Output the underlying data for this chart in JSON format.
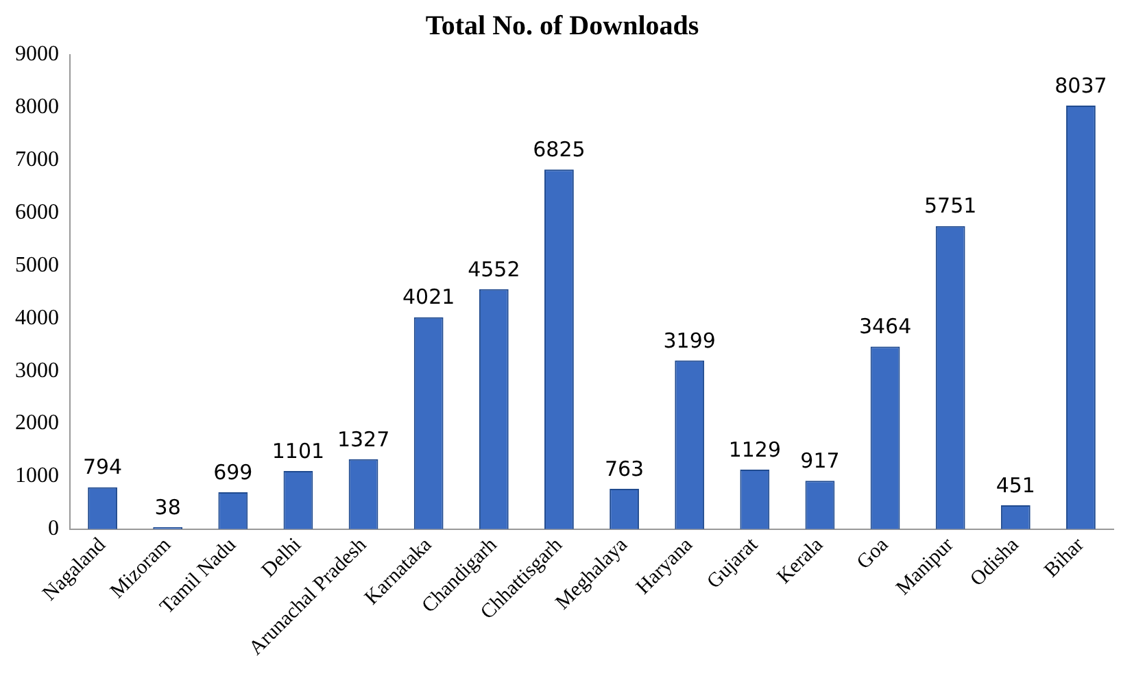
{
  "chart_data": {
    "type": "bar",
    "title": "Total No. of Downloads",
    "categories": [
      "Nagaland",
      "Mizoram",
      "Tamil Nadu",
      "Delhi",
      "Arunachal Pradesh",
      "Karnataka",
      "Chandigarh",
      "Chhattisgarh",
      "Meghalaya",
      "Haryana",
      "Gujarat",
      "Kerala",
      "Goa",
      "Manipur",
      "Odisha",
      "Bihar"
    ],
    "values": [
      794,
      38,
      699,
      1101,
      1327,
      4021,
      4552,
      6825,
      763,
      3199,
      1129,
      917,
      3464,
      5751,
      451,
      8037
    ],
    "color": "#3b6cc2",
    "ylim": [
      0,
      9000
    ],
    "yticks": [
      0,
      1000,
      2000,
      3000,
      4000,
      5000,
      6000,
      7000,
      8000,
      9000
    ],
    "grid": false,
    "data_labels": true,
    "legend": false
  }
}
